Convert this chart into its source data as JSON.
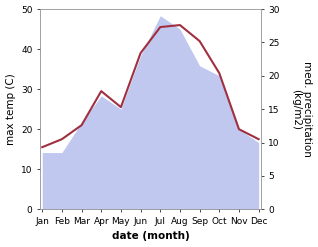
{
  "months": [
    "Jan",
    "Feb",
    "Mar",
    "Apr",
    "May",
    "Jun",
    "Jul",
    "Aug",
    "Sep",
    "Oct",
    "Nov",
    "Dec"
  ],
  "max_temp": [
    15.5,
    17.5,
    21,
    29.5,
    25.5,
    39,
    45.5,
    46,
    42,
    34,
    20,
    17.5
  ],
  "precipitation": [
    8.5,
    8.5,
    13,
    17,
    15,
    23,
    29,
    27,
    21.5,
    20,
    12,
    10
  ],
  "temp_ylim": [
    0,
    50
  ],
  "precip_ylim": [
    0,
    30
  ],
  "temp_color": "#a03040",
  "precip_fill_color": "#c0c8f0",
  "bg_color": "#ffffff",
  "ylabel_left": "max temp (C)",
  "ylabel_right": "med. precipitation\n(kg/m2)",
  "xlabel": "date (month)",
  "label_fontsize": 7.5,
  "tick_fontsize": 6.5
}
